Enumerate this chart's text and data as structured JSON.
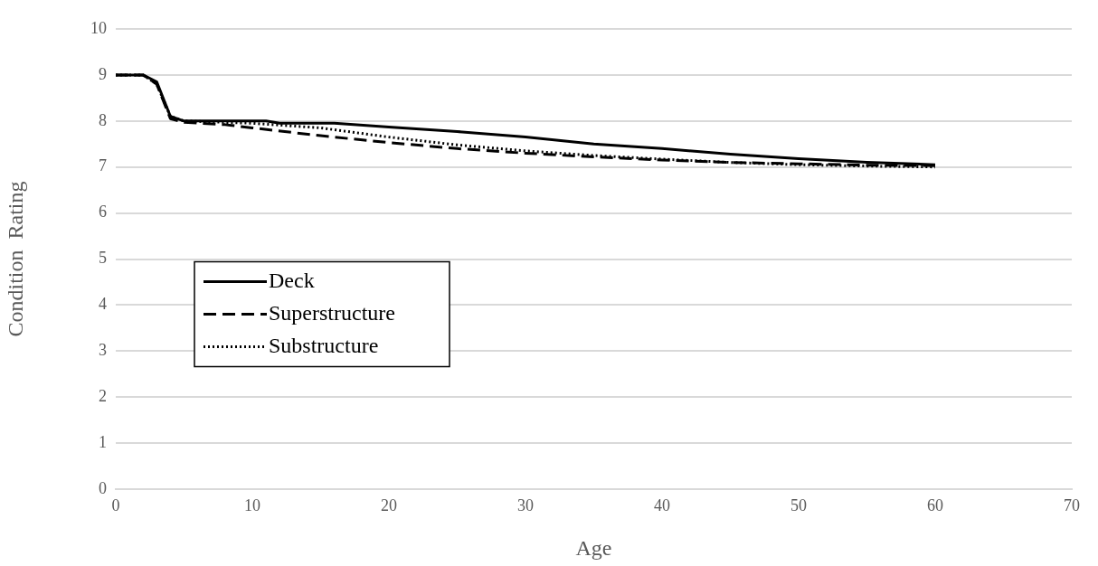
{
  "chart_data": {
    "type": "line",
    "xlabel": "Age",
    "ylabel": "Condition  Rating",
    "xlim": [
      0,
      70
    ],
    "xticks": [
      0,
      10,
      20,
      30,
      40,
      50,
      60,
      70
    ],
    "ylim": [
      0,
      10
    ],
    "yticks": [
      0,
      1,
      2,
      3,
      4,
      5,
      6,
      7,
      8,
      9,
      10
    ],
    "grid": "y",
    "legend": "left",
    "marker": "none",
    "series": [
      {
        "name": "Deck",
        "color": "#000000",
        "line_style": "solid",
        "x": [
          0,
          2,
          3,
          4,
          5,
          11,
          12,
          16,
          20,
          25,
          30,
          35,
          40,
          45,
          50,
          55,
          60
        ],
        "values": [
          9,
          9,
          8.85,
          8.1,
          8,
          8,
          7.95,
          7.95,
          7.87,
          7.77,
          7.65,
          7.5,
          7.4,
          7.28,
          7.18,
          7.1,
          7.05
        ]
      },
      {
        "name": "Superstructure",
        "color": "#000000",
        "line_style": "dashed",
        "x": [
          0,
          2,
          3,
          4,
          5,
          8,
          10,
          15,
          20,
          25,
          30,
          35,
          40,
          45,
          50,
          55,
          60
        ],
        "values": [
          9,
          9,
          8.8,
          8.05,
          7.97,
          7.92,
          7.85,
          7.68,
          7.53,
          7.4,
          7.3,
          7.22,
          7.15,
          7.1,
          7.07,
          7.04,
          7.03
        ]
      },
      {
        "name": "Substructure",
        "color": "#000000",
        "line_style": "dotted",
        "x": [
          0,
          2,
          3,
          4,
          5,
          10,
          15,
          20,
          25,
          30,
          35,
          40,
          45,
          50,
          55,
          60
        ],
        "values": [
          9,
          9,
          8.8,
          8.1,
          8,
          7.95,
          7.85,
          7.65,
          7.48,
          7.35,
          7.25,
          7.17,
          7.1,
          7.05,
          7.02,
          7
        ]
      }
    ]
  }
}
